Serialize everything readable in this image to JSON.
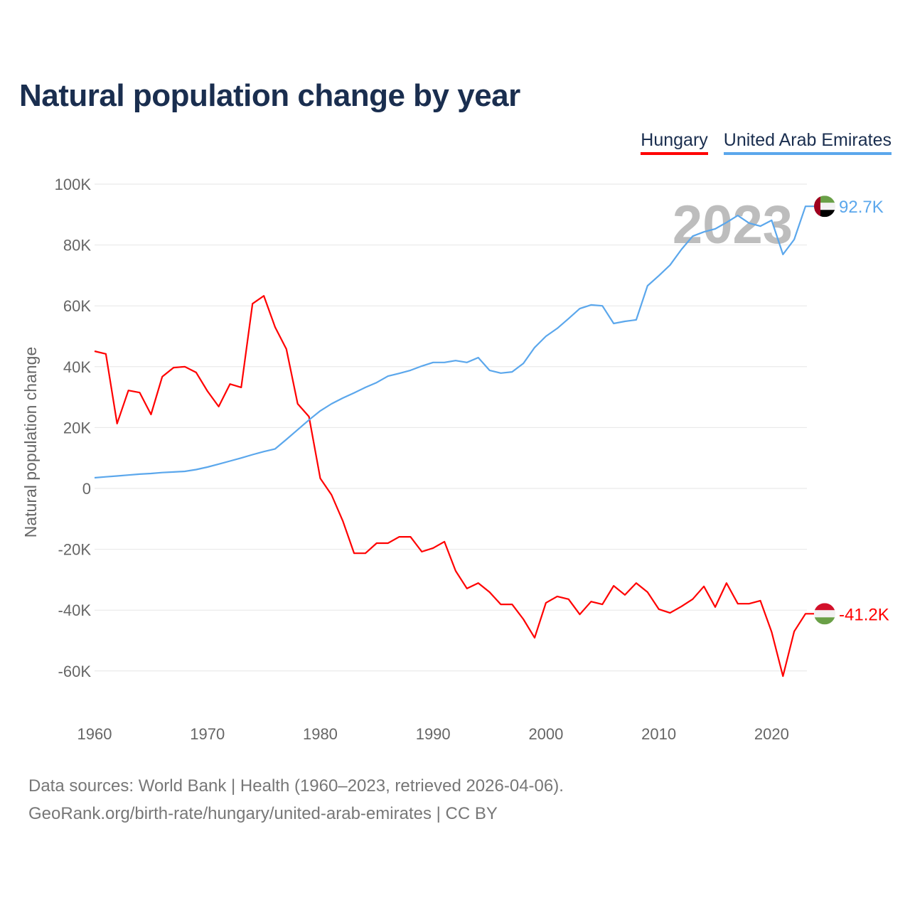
{
  "title": "Natural population change by year",
  "footer": {
    "line1": "Data sources: World Bank | Health (1960–2023, retrieved 2026-04-06).",
    "line2": "GeoRank.org/birth-rate/hungary/united-arab-emirates | CC BY"
  },
  "chart_data": {
    "type": "line",
    "title": "Natural population change by year",
    "xlabel": "",
    "ylabel": "Natural population change",
    "xlim": [
      1960,
      2023
    ],
    "ylim": [
      -70000,
      100000
    ],
    "grid": true,
    "legend_position": "top-right",
    "year_watermark": "2023",
    "x_ticks": [
      "1960",
      "1970",
      "1980",
      "1990",
      "2000",
      "2010",
      "2020"
    ],
    "y_ticks": [
      {
        "v": 100000,
        "label": "100K"
      },
      {
        "v": 80000,
        "label": "80K"
      },
      {
        "v": 60000,
        "label": "60K"
      },
      {
        "v": 40000,
        "label": "40K"
      },
      {
        "v": 20000,
        "label": "20K"
      },
      {
        "v": 0,
        "label": "0"
      },
      {
        "v": -20000,
        "label": "-20K"
      },
      {
        "v": -40000,
        "label": "-40K"
      },
      {
        "v": -60000,
        "label": "-60K"
      }
    ],
    "x": [
      1960,
      1961,
      1962,
      1963,
      1964,
      1965,
      1966,
      1967,
      1968,
      1969,
      1970,
      1971,
      1972,
      1973,
      1974,
      1975,
      1976,
      1977,
      1978,
      1979,
      1980,
      1981,
      1982,
      1983,
      1984,
      1985,
      1986,
      1987,
      1988,
      1989,
      1990,
      1991,
      1992,
      1993,
      1994,
      1995,
      1996,
      1997,
      1998,
      1999,
      2000,
      2001,
      2002,
      2003,
      2004,
      2005,
      2006,
      2007,
      2008,
      2009,
      2010,
      2011,
      2012,
      2013,
      2014,
      2015,
      2016,
      2017,
      2018,
      2019,
      2020,
      2021,
      2022,
      2023
    ],
    "series": [
      {
        "name": "Hungary",
        "color": "#ff0000",
        "end_label": "-41.2K",
        "flag": "hungary-flag",
        "values": [
          45100,
          44200,
          21300,
          32200,
          31500,
          24300,
          36700,
          39700,
          40000,
          38100,
          32000,
          26900,
          34300,
          33200,
          60700,
          63300,
          53000,
          45800,
          27800,
          23600,
          3300,
          -2100,
          -10700,
          -21300,
          -21300,
          -18000,
          -18000,
          -15900,
          -15900,
          -20800,
          -19600,
          -17500,
          -27100,
          -32900,
          -31100,
          -34100,
          -38100,
          -38100,
          -43000,
          -49100,
          -37600,
          -35500,
          -36400,
          -41400,
          -37200,
          -38100,
          -32000,
          -35000,
          -31100,
          -34100,
          -39700,
          -40900,
          -38800,
          -36400,
          -32200,
          -39000,
          -31100,
          -37900,
          -37900,
          -36900,
          -47200,
          -61700,
          -47000,
          -41200
        ]
      },
      {
        "name": "United Arab Emirates",
        "color": "#5ba7ec",
        "end_label": "92.7K",
        "flag": "uae-flag",
        "values": [
          3500,
          3800,
          4100,
          4400,
          4700,
          4900,
          5200,
          5400,
          5600,
          6200,
          7000,
          8000,
          9000,
          10000,
          11100,
          12100,
          13000,
          16100,
          19300,
          22500,
          25500,
          27800,
          29700,
          31400,
          33200,
          34800,
          36900,
          37800,
          38800,
          40200,
          41400,
          41400,
          42000,
          41400,
          43000,
          38800,
          37900,
          38300,
          41100,
          46300,
          50000,
          52600,
          55800,
          59100,
          60300,
          60000,
          54200,
          54900,
          55400,
          66600,
          69900,
          73400,
          78500,
          82900,
          84300,
          85300,
          87400,
          89700,
          87200,
          86200,
          88100,
          76900,
          81800,
          92700
        ]
      }
    ]
  }
}
